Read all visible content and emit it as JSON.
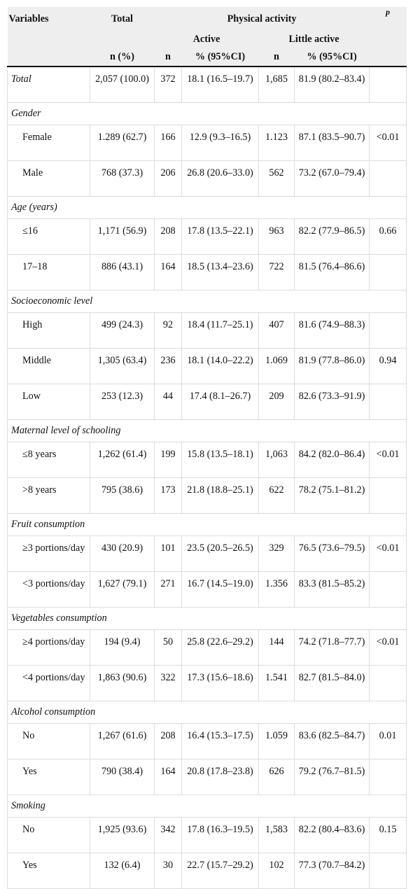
{
  "header": {
    "variables": "Variables",
    "total": "Total",
    "physical_activity": "Physical activity",
    "p": "p",
    "active": "Active",
    "little_active": "Little active",
    "n_pct": "n (%)",
    "n": "n",
    "pct_ci": "% (95%CI)"
  },
  "rows": [
    {
      "type": "data",
      "label": "Total",
      "italic": true,
      "total": "2,057 (100.0)",
      "n_active": "372",
      "pct_active": "18.1 (16.5–19.7)",
      "n_little": "1,685",
      "pct_little": "81.9 (80.2–83.4)",
      "p": ""
    },
    {
      "type": "cat",
      "label": "Gender"
    },
    {
      "type": "data",
      "label": "Female",
      "total": "1.289 (62.7)",
      "n_active": "166",
      "pct_active": "12.9 (9.3–16.5)",
      "n_little": "1.123",
      "pct_little": "87.1 (83.5–90.7)",
      "p": "<0.01"
    },
    {
      "type": "data",
      "label": "Male",
      "total": "768 (37.3)",
      "n_active": "206",
      "pct_active": "26.8 (20.6–33.0)",
      "n_little": "562",
      "pct_little": "73.2 (67.0–79.4)",
      "p": ""
    },
    {
      "type": "cat",
      "label": "Age (years)"
    },
    {
      "type": "data",
      "label": "≤16",
      "total": "1,171 (56.9)",
      "n_active": "208",
      "pct_active": "17.8 (13.5–22.1)",
      "n_little": "963",
      "pct_little": "82.2 (77.9–86.5)",
      "p": "0.66"
    },
    {
      "type": "data",
      "label": "17–18",
      "total": "886 (43.1)",
      "n_active": "164",
      "pct_active": "18.5 (13.4–23.6)",
      "n_little": "722",
      "pct_little": "81.5 (76.4–86.6)",
      "p": ""
    },
    {
      "type": "cat",
      "label": "Socioeconomic level"
    },
    {
      "type": "data",
      "label": "High",
      "total": "499 (24.3)",
      "n_active": "92",
      "pct_active": "18.4 (11.7–25.1)",
      "n_little": "407",
      "pct_little": "81.6 (74.9–88.3)",
      "p": ""
    },
    {
      "type": "data",
      "label": "Middle",
      "total": "1,305 (63.4)",
      "n_active": "236",
      "pct_active": "18.1 (14.0–22.2)",
      "n_little": "1.069",
      "pct_little": "81.9 (77.8–86.0)",
      "p": "0.94"
    },
    {
      "type": "data",
      "label": "Low",
      "total": "253 (12.3)",
      "n_active": "44",
      "pct_active": "17.4 (8.1–26.7)",
      "n_little": "209",
      "pct_little": "82.6 (73.3–91.9)",
      "p": ""
    },
    {
      "type": "cat",
      "label": "Maternal level of schooling"
    },
    {
      "type": "data",
      "label": "≤8 years",
      "total": "1,262 (61.4)",
      "n_active": "199",
      "pct_active": "15.8 (13.5–18.1)",
      "n_little": "1,063",
      "pct_little": "84.2 (82.0–86.4)",
      "p": "<0.01"
    },
    {
      "type": "data",
      "label": ">8 years",
      "total": "795 (38.6)",
      "n_active": "173",
      "pct_active": "21.8 (18.8–25.1)",
      "n_little": "622",
      "pct_little": "78.2 (75.1–81.2)",
      "p": ""
    },
    {
      "type": "cat",
      "label": "Fruit consumption"
    },
    {
      "type": "data",
      "label": "≥3 portions/day",
      "total": "430 (20.9)",
      "n_active": "101",
      "pct_active": "23.5 (20.5–26.5)",
      "n_little": "329",
      "pct_little": "76.5 (73.6–79.5)",
      "p": "<0.01"
    },
    {
      "type": "data",
      "label": "<3 portions/day",
      "total": "1,627 (79.1)",
      "n_active": "271",
      "pct_active": "16.7 (14.5–19.0)",
      "n_little": "1.356",
      "pct_little": "83.3 (81.5–85.2)",
      "p": ""
    },
    {
      "type": "cat",
      "label": "Vegetables consumption"
    },
    {
      "type": "data",
      "label": "≥4 portions/day",
      "total": "194 (9.4)",
      "n_active": "50",
      "pct_active": "25.8 (22.6–29.2)",
      "n_little": "144",
      "pct_little": "74.2 (71.8–77.7)",
      "p": "<0.01"
    },
    {
      "type": "data",
      "label": "<4 portions/day",
      "total": "1,863 (90.6)",
      "n_active": "322",
      "pct_active": "17.3 (15.6–18.6)",
      "n_little": "1.541",
      "pct_little": "82.7 (81.5–84.0)",
      "p": ""
    },
    {
      "type": "cat",
      "label": "Alcohol consumption"
    },
    {
      "type": "data",
      "label": "No",
      "total": "1,267 (61.6)",
      "n_active": "208",
      "pct_active": "16.4 (15.3–17.5)",
      "n_little": "1.059",
      "pct_little": "83.6 (82.5–84.7)",
      "p": "0.01"
    },
    {
      "type": "data",
      "label": "Yes",
      "total": "790 (38.4)",
      "n_active": "164",
      "pct_active": "20.8 (17.8–23.8)",
      "n_little": "626",
      "pct_little": "79.2 (76.7–81.5)",
      "p": ""
    },
    {
      "type": "cat",
      "label": "Smoking"
    },
    {
      "type": "data",
      "label": "No",
      "total": "1,925 (93.6)",
      "n_active": "342",
      "pct_active": "17.8 (16.3–19.5)",
      "n_little": "1,583",
      "pct_little": "82.2 (80.4–83.6)",
      "p": "0.15"
    },
    {
      "type": "data",
      "label": "Yes",
      "total": "132 (6.4)",
      "n_active": "30",
      "pct_active": "22.7 (15.7–29.2)",
      "n_little": "102",
      "pct_little": "77.3 (70.7–84.2)",
      "p": ""
    }
  ]
}
